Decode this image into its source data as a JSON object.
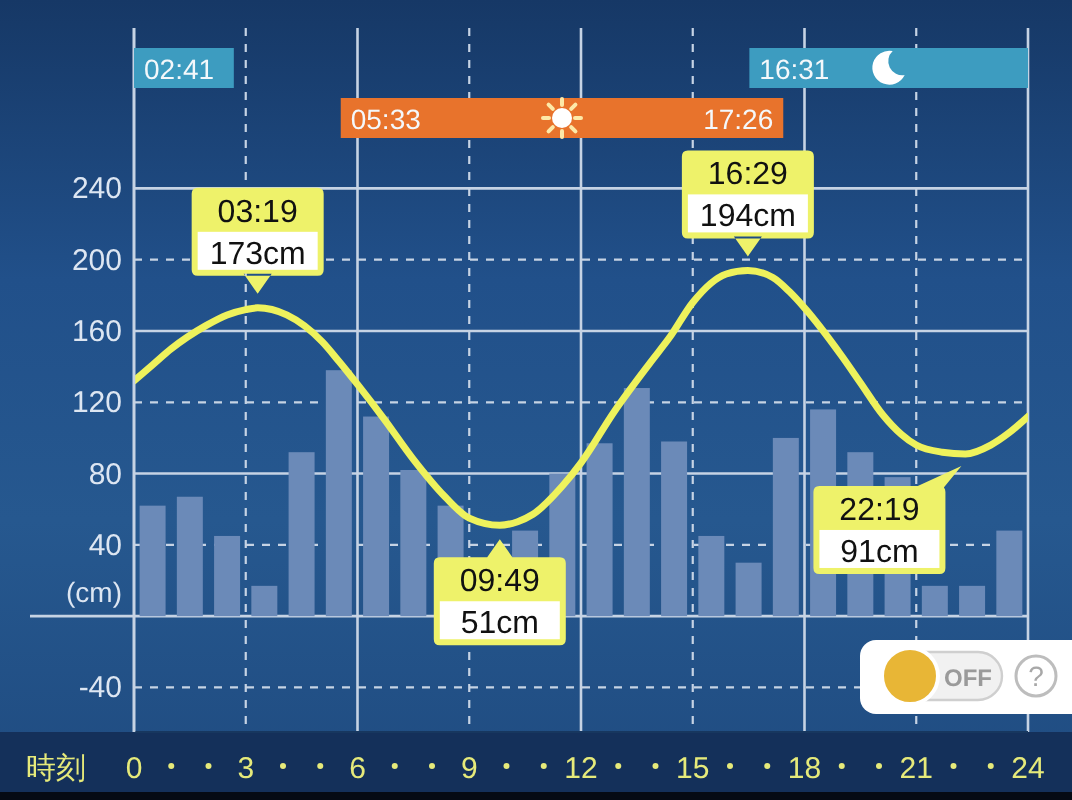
{
  "chart_data": {
    "type": "line",
    "xlabel": "時刻",
    "ylabel": "(cm)",
    "xlim": [
      0,
      24
    ],
    "xticks": [
      0,
      3,
      6,
      9,
      12,
      15,
      18,
      21,
      24
    ],
    "ylim": [
      -65,
      330
    ],
    "yticks": [
      -40,
      {
        "value": 0,
        "label": null
      },
      40,
      80,
      120,
      160,
      200,
      240
    ],
    "grid": true,
    "series": [
      {
        "type": "bar",
        "color": "#6b8ab8",
        "x": [
          0.5,
          1.5,
          2.5,
          3.5,
          4.5,
          5.5,
          6.5,
          7.5,
          8.5,
          9.5,
          10.5,
          11.5,
          12.5,
          13.5,
          14.5,
          15.5,
          16.5,
          17.5,
          18.5,
          19.5,
          20.5,
          21.5,
          22.5,
          23.5
        ],
        "values": [
          62,
          67,
          45,
          17,
          92,
          138,
          112,
          82,
          62,
          null,
          48,
          80,
          97,
          128,
          98,
          45,
          30,
          100,
          116,
          92,
          78,
          17,
          17,
          48
        ]
      },
      {
        "color": "#eef25c",
        "x": [
          0,
          0.5,
          1,
          1.93,
          2.5,
          3,
          3.32,
          4.1,
          5.05,
          5.5,
          6,
          6.7,
          7.5,
          8.35,
          9,
          9.82,
          10.3,
          10.7,
          11.5,
          12,
          12.9,
          13.85,
          14.4,
          15,
          15.9,
          16.48,
          17.15,
          17.6,
          18,
          19,
          19.5,
          20.1,
          20.6,
          21,
          21.7,
          22.32,
          23,
          23.5,
          24
        ],
        "values": [
          132,
          141,
          150,
          163,
          169,
          172,
          173,
          169,
          154,
          143,
          130,
          111,
          88,
          67,
          55,
          51,
          53,
          57,
          73,
          86,
          115,
          142,
          157,
          176,
          192,
          194,
          190,
          182,
          173,
          146,
          131,
          113,
          102,
          96,
          92,
          91,
          96,
          103,
          112
        ]
      }
    ],
    "bands": [
      {
        "axis": "x",
        "from": 0,
        "to": 2.68,
        "label": "02:41",
        "color": "#3d9cc0"
      },
      {
        "axis": "x",
        "from": 16.52,
        "to": 24,
        "label": "16:31",
        "color": "#3d9cc0"
      },
      {
        "axis": "x",
        "from": 5.55,
        "to": 17.43,
        "label": "05:33",
        "color": "#e8732c"
      }
    ],
    "annotations": [
      {
        "text": "03:19\n173cm",
        "x": 3.32,
        "y": 173
      },
      {
        "text": "09:49\n51cm",
        "x": 9.82,
        "y": 51
      },
      {
        "text": "16:29\n194cm",
        "x": 16.48,
        "y": 194
      },
      {
        "text": "22:19\n91cm",
        "x": 22.32,
        "y": 91
      },
      {
        "text": "17:26",
        "x": 17.43
      },
      "OFF",
      "?"
    ]
  }
}
